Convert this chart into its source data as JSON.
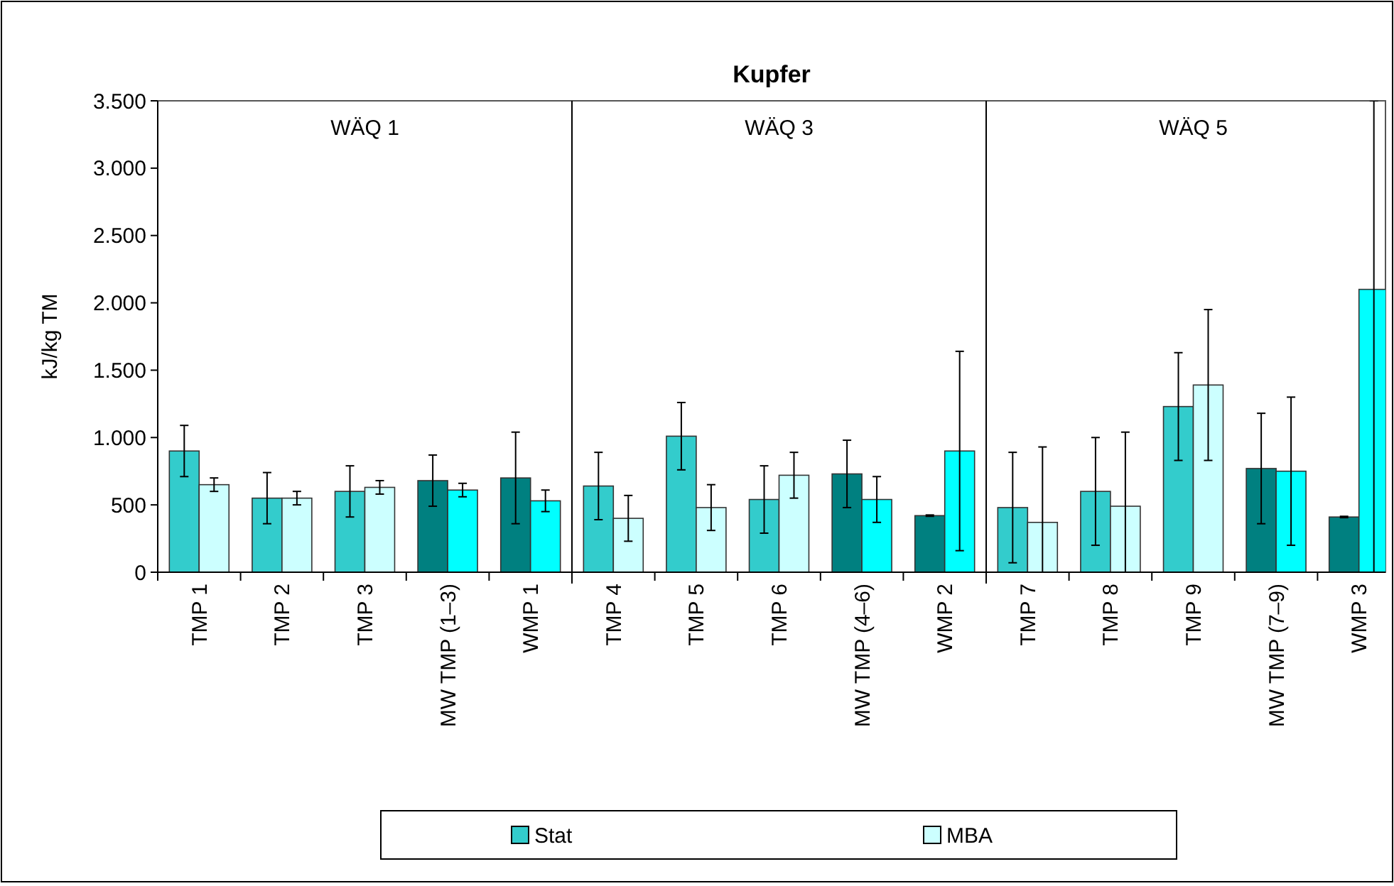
{
  "chart_data": {
    "type": "bar",
    "title": "Kupfer",
    "ylabel": "kJ/kg TM",
    "categories": [
      "TMP 1",
      "TMP 2",
      "TMP 3",
      "MW TMP (1–3)",
      "WMP 1",
      "TMP 4",
      "TMP 5",
      "TMP 6",
      "MW TMP (4–6)",
      "WMP 2",
      "TMP 7",
      "TMP 8",
      "TMP 9",
      "MW TMP (7–9)",
      "WMP 3"
    ],
    "series": [
      {
        "name": "Stat",
        "color": "#33cccc",
        "colors": [
          "#33cccc",
          "#33cccc",
          "#33cccc",
          "#008080",
          "#008080",
          "#33cccc",
          "#33cccc",
          "#33cccc",
          "#008080",
          "#008080",
          "#33cccc",
          "#33cccc",
          "#33cccc",
          "#008080",
          "#008080"
        ],
        "values": [
          900,
          550,
          600,
          680,
          700,
          640,
          1010,
          540,
          730,
          420,
          480,
          600,
          1230,
          770,
          410
        ],
        "errors": [
          190,
          190,
          190,
          190,
          340,
          250,
          250,
          250,
          250,
          5,
          410,
          400,
          400,
          410,
          5
        ]
      },
      {
        "name": "MBA",
        "color": "#ccffff",
        "colors": [
          "#ccffff",
          "#ccffff",
          "#ccffff",
          "#00ffff",
          "#00ffff",
          "#ccffff",
          "#ccffff",
          "#ccffff",
          "#00ffff",
          "#00ffff",
          "#ccffff",
          "#ccffff",
          "#ccffff",
          "#00ffff",
          "#00ffff"
        ],
        "values": [
          650,
          550,
          630,
          610,
          530,
          400,
          480,
          720,
          540,
          900,
          370,
          490,
          1390,
          750,
          2100
        ],
        "errors": [
          50,
          50,
          50,
          50,
          80,
          170,
          170,
          170,
          170,
          740,
          [
            0,
            930
          ],
          [
            0,
            1040
          ],
          560,
          550,
          [
            0,
            3500
          ]
        ]
      }
    ],
    "ylim": [
      0,
      3500
    ],
    "yticks": [
      0,
      500,
      {
        "value": 1000,
        "label": "1.000"
      },
      {
        "value": 1500,
        "label": "1.500"
      },
      {
        "value": 2000,
        "label": "2.000"
      },
      {
        "value": 2500,
        "label": "2.500"
      },
      {
        "value": 3000,
        "label": "3.000"
      },
      {
        "value": 3500,
        "label": "3.500"
      }
    ],
    "annotations": [
      "WÄQ 1",
      "WÄQ 3",
      "WÄQ 5"
    ],
    "grid": false,
    "legend": "bottom"
  }
}
